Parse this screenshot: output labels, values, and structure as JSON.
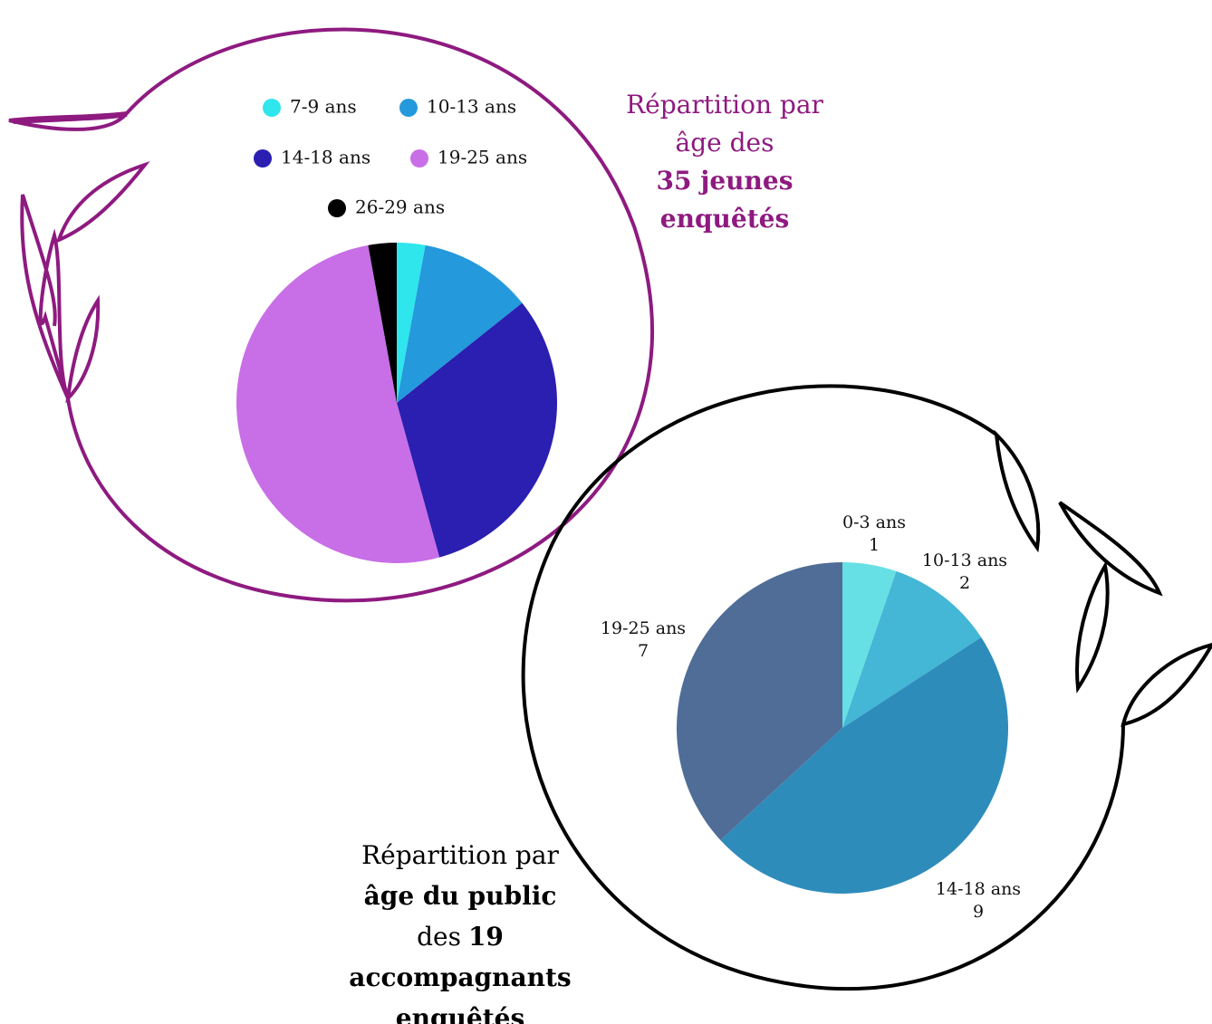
{
  "chart_data": [
    {
      "type": "pie",
      "title_lines": [
        [
          "Répartition par"
        ],
        [
          "âge des"
        ],
        [
          "35 jeunes"
        ],
        [
          "enquêtés"
        ]
      ],
      "categories": [
        "7-9 ans",
        "10-13 ans",
        "14-18 ans",
        "19-25 ans",
        "26-29 ans"
      ],
      "values": [
        1,
        4,
        11,
        18,
        1
      ],
      "colors": [
        "#2ee6ec",
        "#2499dc",
        "#2a1fb0",
        "#c86ee6",
        "#000000"
      ],
      "legend": "top"
    },
    {
      "type": "pie",
      "title_lines": [
        [
          "Répartition par"
        ],
        [
          "âge du public"
        ],
        [
          "des",
          "19"
        ],
        [
          "accompagnants"
        ],
        [
          "enquêtés"
        ]
      ],
      "categories": [
        "0-3 ans",
        "10-13 ans",
        "14-18 ans",
        "19-25 ans"
      ],
      "values": [
        1,
        2,
        9,
        7
      ],
      "colors": [
        "#66e0e4",
        "#44b6d6",
        "#2e8cbb",
        "#4f6d96"
      ],
      "legend": "none"
    }
  ]
}
